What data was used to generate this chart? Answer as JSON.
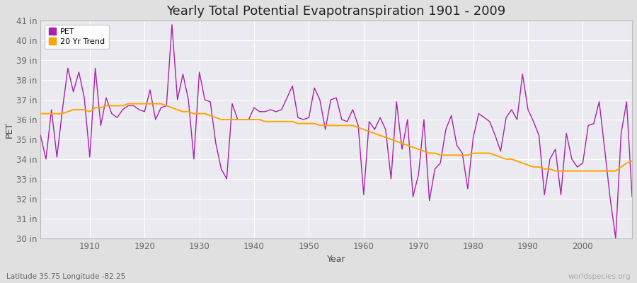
{
  "title": "Yearly Total Potential Evapotranspiration 1901 - 2009",
  "ylabel": "PET",
  "xlabel": "Year",
  "footnote_left": "Latitude 35.75 Longitude -82.25",
  "footnote_right": "worldspecies.org",
  "years": [
    1901,
    1902,
    1903,
    1904,
    1905,
    1906,
    1907,
    1908,
    1909,
    1910,
    1911,
    1912,
    1913,
    1914,
    1915,
    1916,
    1917,
    1918,
    1919,
    1920,
    1921,
    1922,
    1923,
    1924,
    1925,
    1926,
    1927,
    1928,
    1929,
    1930,
    1931,
    1932,
    1933,
    1934,
    1935,
    1936,
    1937,
    1938,
    1939,
    1940,
    1941,
    1942,
    1943,
    1944,
    1945,
    1946,
    1947,
    1948,
    1949,
    1950,
    1951,
    1952,
    1953,
    1954,
    1955,
    1956,
    1957,
    1958,
    1959,
    1960,
    1961,
    1962,
    1963,
    1964,
    1965,
    1966,
    1967,
    1968,
    1969,
    1970,
    1971,
    1972,
    1973,
    1974,
    1975,
    1976,
    1977,
    1978,
    1979,
    1980,
    1981,
    1982,
    1983,
    1984,
    1985,
    1986,
    1987,
    1988,
    1989,
    1990,
    1991,
    1992,
    1993,
    1994,
    1995,
    1996,
    1997,
    1998,
    1999,
    2000,
    2001,
    2002,
    2003,
    2004,
    2005,
    2006,
    2007,
    2008,
    2009
  ],
  "pet": [
    35.2,
    34.0,
    36.5,
    34.1,
    36.5,
    38.6,
    37.4,
    38.4,
    37.1,
    34.1,
    38.6,
    35.7,
    37.1,
    36.3,
    36.1,
    36.5,
    36.7,
    36.7,
    36.5,
    36.4,
    37.5,
    36.0,
    36.6,
    36.7,
    40.8,
    37.0,
    38.3,
    37.0,
    34.0,
    38.4,
    37.0,
    36.9,
    34.8,
    33.5,
    33.0,
    36.8,
    36.0,
    36.0,
    36.0,
    36.6,
    36.4,
    36.4,
    36.5,
    36.4,
    36.5,
    37.1,
    37.7,
    36.1,
    36.0,
    36.1,
    37.6,
    37.0,
    35.5,
    37.0,
    37.1,
    36.0,
    35.9,
    36.5,
    35.7,
    32.2,
    35.9,
    35.5,
    36.1,
    35.5,
    33.0,
    36.9,
    34.5,
    36.0,
    32.1,
    33.2,
    36.0,
    31.9,
    33.5,
    33.8,
    35.5,
    36.2,
    34.7,
    34.3,
    32.5,
    35.1,
    36.3,
    36.1,
    35.9,
    35.2,
    34.4,
    36.1,
    36.5,
    36.0,
    38.3,
    36.5,
    35.9,
    35.2,
    32.2,
    34.0,
    34.5,
    32.2,
    35.3,
    34.0,
    33.6,
    33.8,
    35.7,
    35.8,
    36.9,
    34.5,
    32.0,
    30.0,
    35.3,
    36.9,
    32.1
  ],
  "trend": [
    36.3,
    36.3,
    36.3,
    36.3,
    36.3,
    36.4,
    36.5,
    36.5,
    36.5,
    36.4,
    36.6,
    36.6,
    36.7,
    36.7,
    36.7,
    36.7,
    36.8,
    36.8,
    36.8,
    36.8,
    36.8,
    36.8,
    36.8,
    36.7,
    36.6,
    36.5,
    36.4,
    36.4,
    36.3,
    36.3,
    36.3,
    36.2,
    36.1,
    36.0,
    36.0,
    36.0,
    36.0,
    36.0,
    36.0,
    36.0,
    36.0,
    35.9,
    35.9,
    35.9,
    35.9,
    35.9,
    35.9,
    35.8,
    35.8,
    35.8,
    35.8,
    35.7,
    35.7,
    35.7,
    35.7,
    35.7,
    35.7,
    35.7,
    35.6,
    35.5,
    35.4,
    35.3,
    35.2,
    35.1,
    35.0,
    34.9,
    34.8,
    34.7,
    34.6,
    34.5,
    34.4,
    34.3,
    34.3,
    34.2,
    34.2,
    34.2,
    34.2,
    34.2,
    34.2,
    34.3,
    34.3,
    34.3,
    34.3,
    34.2,
    34.1,
    34.0,
    34.0,
    33.9,
    33.8,
    33.7,
    33.6,
    33.6,
    33.5,
    33.5,
    33.4,
    33.4,
    33.4,
    33.4,
    33.4,
    33.4,
    33.4,
    33.4,
    33.4,
    33.4,
    33.4,
    33.4,
    33.6,
    33.8,
    33.9
  ],
  "pet_color": "#AA22AA",
  "trend_color": "#FFA500",
  "fig_bg_color": "#E0E0E0",
  "plot_bg_color": "#EAEAF0",
  "grid_color": "#FFFFFF",
  "ylim": [
    30,
    41
  ],
  "yticks": [
    30,
    31,
    32,
    33,
    34,
    35,
    36,
    37,
    38,
    39,
    40,
    41
  ],
  "ytick_labels": [
    "30 in",
    "31 in",
    "32 in",
    "33 in",
    "34 in",
    "35 in",
    "36 in",
    "37 in",
    "38 in",
    "39 in",
    "40 in",
    "41 in"
  ],
  "xticks": [
    1910,
    1920,
    1930,
    1940,
    1950,
    1960,
    1970,
    1980,
    1990,
    2000
  ],
  "title_fontsize": 13,
  "axis_fontsize": 9,
  "tick_fontsize": 8.5,
  "legend_fontsize": 8
}
